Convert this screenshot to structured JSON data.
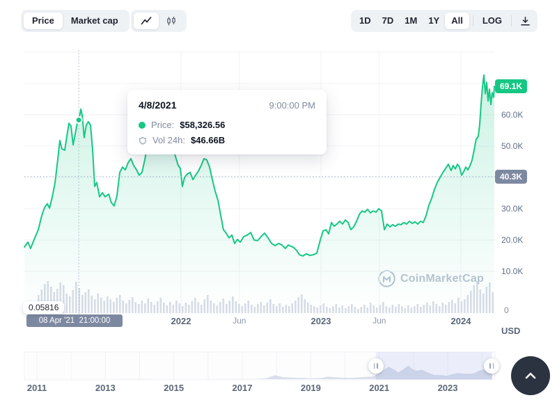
{
  "header": {
    "metric_toggle": {
      "options": [
        "Price",
        "Market cap"
      ],
      "selected": "Price"
    },
    "chart_type_toggle": {
      "options": [
        "line",
        "candlestick"
      ],
      "selected": "line"
    },
    "range_buttons": [
      "1D",
      "7D",
      "1M",
      "1Y",
      "All"
    ],
    "selected_range": "All",
    "log_label": "LOG"
  },
  "tooltip": {
    "date": "4/8/2021",
    "time": "9:00:00 PM",
    "price_label": "Price:",
    "price_value": "$58,326.56",
    "vol_label": "Vol 24h:",
    "vol_value": "$46.66B"
  },
  "y_axis": {
    "current_badge": {
      "label": "69.1K",
      "value_k": 69.1,
      "color": "#16c784"
    },
    "crosshair_badge": {
      "label": "40.3K",
      "value_k": 40.3,
      "color": "#7d89a0"
    },
    "ticks": [
      {
        "label": "60.0K",
        "value_k": 60
      },
      {
        "label": "50.0K",
        "value_k": 50
      },
      {
        "label": "30.0K",
        "value_k": 30
      },
      {
        "label": "20.0K",
        "value_k": 20
      },
      {
        "label": "10.0K",
        "value_k": 10
      }
    ],
    "volume_zero": "0",
    "unit": "USD"
  },
  "x_axis": {
    "crosshair_badge": "08 Apr '21  21:00:00",
    "volume_crosshair_value": "0.05816",
    "ticks": [
      {
        "label": "2022",
        "t": 2022.0,
        "style": "year"
      },
      {
        "label": "Jun",
        "t": 2022.417,
        "style": "month"
      },
      {
        "label": "2023",
        "t": 2023.0,
        "style": "year"
      },
      {
        "label": "Jun",
        "t": 2023.417,
        "style": "month"
      },
      {
        "label": "2024",
        "t": 2024.0,
        "style": "year"
      }
    ]
  },
  "watermark": {
    "text": "CoinMarketCap"
  },
  "timeline": {
    "ticks": [
      2011,
      2013,
      2015,
      2017,
      2019,
      2021,
      2023
    ],
    "selection": {
      "from": 2020.9,
      "to": 2024.29
    }
  },
  "colors": {
    "accent_green": "#16c784",
    "slate_badge": "#7d89a0",
    "volume_bar": "#d7dce6",
    "grid": "#eff2f5",
    "axis_text": "#616e85",
    "scroll_button": "#2b3240"
  },
  "chart_data": {
    "type": "area",
    "title": "Bitcoin price, All-time chart zoomed to Nov 2020 - Apr 2024",
    "x_unit": "decimal_year",
    "y_unit": "USD thousands",
    "xlim": [
      2020.881,
      2024.239
    ],
    "ylim": [
      0,
      81
    ],
    "grid_h_values_k": [
      10,
      20,
      30,
      40,
      50,
      60,
      70,
      80
    ],
    "legend": "none",
    "crosshair": {
      "t": 2021.269,
      "price_k": 58.326,
      "hline_value_k": 40.3
    },
    "current_price_k": 69.1,
    "price_series": [
      [
        2020.881,
        17.8
      ],
      [
        2020.906,
        19.3
      ],
      [
        2020.925,
        17.3
      ],
      [
        2020.955,
        20.7
      ],
      [
        2020.98,
        23.3
      ],
      [
        2021.005,
        27.8
      ],
      [
        2021.025,
        30.4
      ],
      [
        2021.045,
        31.6
      ],
      [
        2021.06,
        30.2
      ],
      [
        2021.08,
        33.8
      ],
      [
        2021.1,
        38.4
      ],
      [
        2021.119,
        45.6
      ],
      [
        2021.134,
        51.8
      ],
      [
        2021.149,
        49.1
      ],
      [
        2021.169,
        48.7
      ],
      [
        2021.184,
        53.1
      ],
      [
        2021.199,
        57.3
      ],
      [
        2021.214,
        56.4
      ],
      [
        2021.229,
        50.4
      ],
      [
        2021.244,
        53.8
      ],
      [
        2021.259,
        57.6
      ],
      [
        2021.269,
        58.3
      ],
      [
        2021.284,
        61.8
      ],
      [
        2021.294,
        59.8
      ],
      [
        2021.308,
        52.7
      ],
      [
        2021.323,
        56.7
      ],
      [
        2021.338,
        57.8
      ],
      [
        2021.353,
        56.7
      ],
      [
        2021.368,
        48.9
      ],
      [
        2021.383,
        37.1
      ],
      [
        2021.398,
        38.4
      ],
      [
        2021.418,
        33.8
      ],
      [
        2021.438,
        35.1
      ],
      [
        2021.458,
        33.8
      ],
      [
        2021.483,
        34.7
      ],
      [
        2021.502,
        32.0
      ],
      [
        2021.522,
        30.9
      ],
      [
        2021.542,
        34.0
      ],
      [
        2021.562,
        41.6
      ],
      [
        2021.582,
        43.3
      ],
      [
        2021.602,
        42.4
      ],
      [
        2021.622,
        44.7
      ],
      [
        2021.642,
        46.0
      ],
      [
        2021.662,
        43.8
      ],
      [
        2021.682,
        42.4
      ],
      [
        2021.701,
        40.7
      ],
      [
        2021.721,
        41.6
      ],
      [
        2021.741,
        45.6
      ],
      [
        2021.761,
        50.4
      ],
      [
        2021.781,
        55.6
      ],
      [
        2021.801,
        59.3
      ],
      [
        2021.821,
        62.2
      ],
      [
        2021.841,
        64.4
      ],
      [
        2021.861,
        63.3
      ],
      [
        2021.881,
        60.7
      ],
      [
        2021.9,
        56.7
      ],
      [
        2021.92,
        53.3
      ],
      [
        2021.94,
        50.0
      ],
      [
        2021.96,
        46.7
      ],
      [
        2021.98,
        43.8
      ],
      [
        2021.995,
        42.9
      ],
      [
        2022.01,
        37.1
      ],
      [
        2022.025,
        40.0
      ],
      [
        2022.045,
        41.1
      ],
      [
        2022.065,
        41.6
      ],
      [
        2022.085,
        39.3
      ],
      [
        2022.104,
        40.7
      ],
      [
        2022.124,
        42.0
      ],
      [
        2022.144,
        43.8
      ],
      [
        2022.164,
        46.0
      ],
      [
        2022.184,
        45.6
      ],
      [
        2022.204,
        43.3
      ],
      [
        2022.224,
        39.3
      ],
      [
        2022.244,
        35.6
      ],
      [
        2022.264,
        32.7
      ],
      [
        2022.284,
        27.8
      ],
      [
        2022.303,
        23.3
      ],
      [
        2022.323,
        22.2
      ],
      [
        2022.343,
        20.7
      ],
      [
        2022.363,
        21.6
      ],
      [
        2022.383,
        18.9
      ],
      [
        2022.403,
        20.2
      ],
      [
        2022.423,
        19.3
      ],
      [
        2022.448,
        21.1
      ],
      [
        2022.473,
        21.6
      ],
      [
        2022.498,
        22.4
      ],
      [
        2022.522,
        20.0
      ],
      [
        2022.547,
        19.8
      ],
      [
        2022.572,
        21.1
      ],
      [
        2022.597,
        22.2
      ],
      [
        2022.622,
        20.7
      ],
      [
        2022.647,
        18.9
      ],
      [
        2022.672,
        18.2
      ],
      [
        2022.697,
        18.9
      ],
      [
        2022.721,
        18.4
      ],
      [
        2022.746,
        17.3
      ],
      [
        2022.766,
        18.4
      ],
      [
        2022.786,
        18.0
      ],
      [
        2022.806,
        17.6
      ],
      [
        2022.826,
        16.7
      ],
      [
        2022.846,
        15.3
      ],
      [
        2022.871,
        14.9
      ],
      [
        2022.896,
        15.6
      ],
      [
        2022.92,
        15.1
      ],
      [
        2022.945,
        15.3
      ],
      [
        2022.97,
        15.8
      ],
      [
        2022.995,
        20.0
      ],
      [
        2023.015,
        22.9
      ],
      [
        2023.035,
        23.3
      ],
      [
        2023.055,
        22.0
      ],
      [
        2023.075,
        25.6
      ],
      [
        2023.094,
        24.4
      ],
      [
        2023.114,
        25.1
      ],
      [
        2023.134,
        26.0
      ],
      [
        2023.154,
        25.1
      ],
      [
        2023.174,
        26.4
      ],
      [
        2023.194,
        25.6
      ],
      [
        2023.214,
        23.3
      ],
      [
        2023.234,
        24.2
      ],
      [
        2023.254,
        26.0
      ],
      [
        2023.274,
        28.2
      ],
      [
        2023.294,
        29.3
      ],
      [
        2023.313,
        28.9
      ],
      [
        2023.333,
        29.8
      ],
      [
        2023.353,
        28.7
      ],
      [
        2023.373,
        29.3
      ],
      [
        2023.393,
        28.9
      ],
      [
        2023.413,
        30.0
      ],
      [
        2023.433,
        29.3
      ],
      [
        2023.453,
        23.3
      ],
      [
        2023.473,
        25.1
      ],
      [
        2023.493,
        24.2
      ],
      [
        2023.512,
        24.9
      ],
      [
        2023.532,
        24.4
      ],
      [
        2023.552,
        25.1
      ],
      [
        2023.572,
        24.9
      ],
      [
        2023.592,
        25.6
      ],
      [
        2023.612,
        25.1
      ],
      [
        2023.632,
        26.0
      ],
      [
        2023.652,
        25.3
      ],
      [
        2023.672,
        25.8
      ],
      [
        2023.692,
        25.1
      ],
      [
        2023.711,
        26.0
      ],
      [
        2023.731,
        25.6
      ],
      [
        2023.751,
        27.8
      ],
      [
        2023.771,
        31.1
      ],
      [
        2023.791,
        33.3
      ],
      [
        2023.811,
        36.2
      ],
      [
        2023.831,
        38.4
      ],
      [
        2023.851,
        40.0
      ],
      [
        2023.871,
        41.6
      ],
      [
        2023.891,
        42.9
      ],
      [
        2023.91,
        44.2
      ],
      [
        2023.93,
        42.2
      ],
      [
        2023.945,
        43.8
      ],
      [
        2023.96,
        42.7
      ],
      [
        2023.975,
        44.2
      ],
      [
        2023.99,
        43.3
      ],
      [
        2024.005,
        40.7
      ],
      [
        2024.02,
        41.8
      ],
      [
        2024.035,
        43.3
      ],
      [
        2024.05,
        42.4
      ],
      [
        2024.065,
        43.8
      ],
      [
        2024.08,
        45.6
      ],
      [
        2024.095,
        48.9
      ],
      [
        2024.109,
        52.2
      ],
      [
        2024.124,
        53.1
      ],
      [
        2024.134,
        56.7
      ],
      [
        2024.144,
        63.3
      ],
      [
        2024.154,
        68.9
      ],
      [
        2024.164,
        72.7
      ],
      [
        2024.174,
        66.7
      ],
      [
        2024.184,
        70.4
      ],
      [
        2024.194,
        64.4
      ],
      [
        2024.204,
        68.2
      ],
      [
        2024.214,
        63.3
      ],
      [
        2024.224,
        67.1
      ],
      [
        2024.234,
        65.6
      ],
      [
        2024.239,
        69.1
      ]
    ],
    "volume_bars_relative": [
      10,
      14,
      9,
      13,
      26,
      34,
      42,
      46,
      38,
      30,
      35,
      44,
      40,
      28,
      24,
      33,
      45,
      36,
      26,
      30,
      34,
      25,
      20,
      28,
      22,
      18,
      24,
      20,
      16,
      22,
      26,
      18,
      14,
      19,
      23,
      16,
      13,
      18,
      14,
      21,
      16,
      12,
      17,
      22,
      15,
      11,
      16,
      12,
      18,
      14,
      10,
      15,
      12,
      17,
      22,
      16,
      12,
      20,
      26,
      18,
      14,
      11,
      16,
      21,
      13,
      18,
      24,
      17,
      13,
      10,
      14,
      18,
      12,
      9,
      13,
      16,
      11,
      15,
      20,
      13,
      10,
      14,
      9,
      12,
      10,
      14,
      18,
      23,
      27,
      20,
      15,
      12,
      10,
      8,
      11,
      14,
      9,
      7,
      10,
      13,
      8,
      11,
      7,
      10,
      13,
      9,
      6,
      9,
      12,
      8,
      15,
      11,
      8,
      12,
      16,
      10,
      8,
      12,
      9,
      13,
      10,
      7,
      11,
      8,
      10,
      13,
      9,
      12,
      15,
      11,
      17,
      13,
      10,
      15,
      12,
      16,
      19,
      14,
      22,
      17,
      20,
      26,
      32,
      40,
      46,
      34,
      28,
      38,
      44,
      30
    ],
    "minimap_series": [
      [
        2010.7,
        0.01
      ],
      [
        2012.0,
        0.01
      ],
      [
        2013.0,
        0.1
      ],
      [
        2013.92,
        1.1
      ],
      [
        2014.5,
        0.5
      ],
      [
        2015.2,
        0.25
      ],
      [
        2016.0,
        0.45
      ],
      [
        2016.8,
        0.7
      ],
      [
        2017.3,
        1.2
      ],
      [
        2017.7,
        4
      ],
      [
        2017.96,
        19
      ],
      [
        2018.2,
        9
      ],
      [
        2018.5,
        7
      ],
      [
        2018.8,
        6.4
      ],
      [
        2018.98,
        3.7
      ],
      [
        2019.3,
        5.5
      ],
      [
        2019.5,
        12
      ],
      [
        2019.85,
        7.5
      ],
      [
        2020.2,
        6
      ],
      [
        2020.5,
        9.5
      ],
      [
        2020.8,
        13
      ],
      [
        2020.95,
        23
      ],
      [
        2021.1,
        38
      ],
      [
        2021.27,
        60
      ],
      [
        2021.45,
        45
      ],
      [
        2021.55,
        32
      ],
      [
        2021.7,
        47
      ],
      [
        2021.85,
        65
      ],
      [
        2021.98,
        47
      ],
      [
        2022.1,
        41
      ],
      [
        2022.25,
        45
      ],
      [
        2022.45,
        30
      ],
      [
        2022.6,
        20
      ],
      [
        2022.85,
        19
      ],
      [
        2022.95,
        16
      ],
      [
        2023.15,
        24
      ],
      [
        2023.3,
        29
      ],
      [
        2023.55,
        26
      ],
      [
        2023.75,
        27
      ],
      [
        2023.95,
        43
      ],
      [
        2024.1,
        48
      ],
      [
        2024.18,
        68
      ],
      [
        2024.25,
        62
      ],
      [
        2024.3,
        66
      ]
    ]
  }
}
